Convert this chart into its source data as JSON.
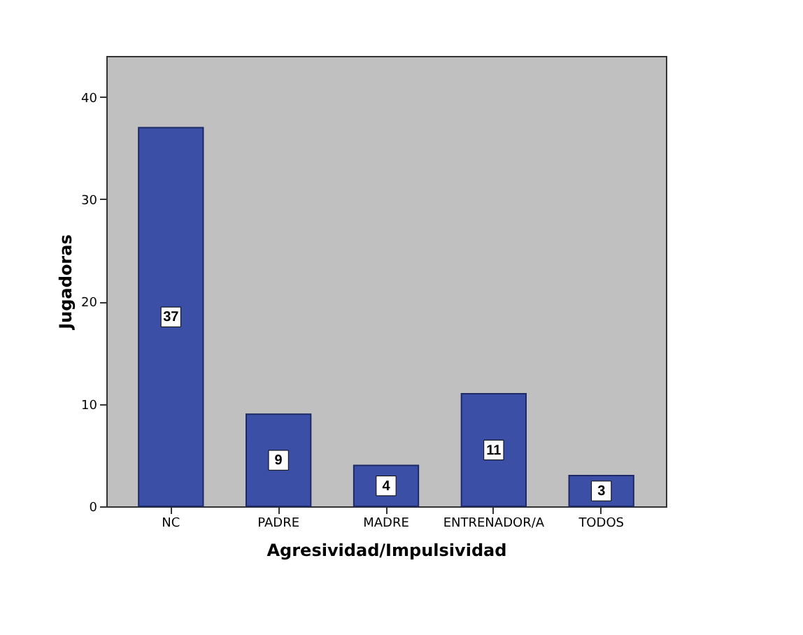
{
  "chart_data": {
    "type": "bar",
    "xlabel": "Agresividad/Impulsividad",
    "ylabel": "Jugadoras",
    "categories": [
      "NC",
      "PADRE",
      "MADRE",
      "ENTRENADOR/A",
      "TODOS"
    ],
    "values": [
      37,
      9,
      4,
      11,
      3
    ],
    "color": "#3b4fa6",
    "ylim": [
      0,
      44
    ],
    "yticks": [
      0,
      10,
      20,
      30,
      40
    ],
    "grid": false,
    "data_labels": true
  }
}
